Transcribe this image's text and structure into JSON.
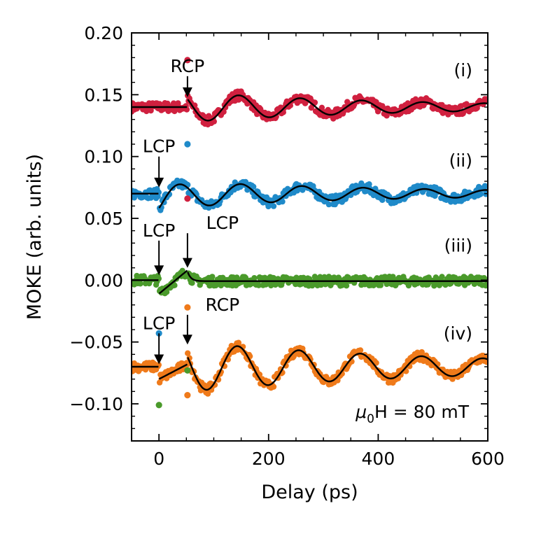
{
  "chart_data": {
    "type": "scatter",
    "xlabel": "Delay (ps)",
    "ylabel": "MOKE (arb. units)",
    "xlim": [
      -50,
      600
    ],
    "ylim": [
      -0.13,
      0.2
    ],
    "xticks": [
      0,
      200,
      400,
      600
    ],
    "yticks": [
      -0.1,
      -0.05,
      0.0,
      0.05,
      0.1,
      0.15,
      0.2
    ],
    "ytick_labels": [
      "−0.10",
      "−0.05",
      "0.00",
      "0.05",
      "0.10",
      "0.15",
      "0.20"
    ],
    "xtick_labels": [
      "0",
      "200",
      "400",
      "600"
    ],
    "grid": false,
    "field_label": {
      "mu": "μ",
      "sub": "0",
      "rest": "H = 80 mT"
    },
    "series": [
      {
        "label": "(i)",
        "color": "#d0203f",
        "baseline": 0.14,
        "pulses": [
          {
            "x": 52,
            "label": "RCP",
            "kick": 0.01,
            "arrow_from": 0.165,
            "arrow_to": 0.148
          }
        ],
        "oscillation": {
          "start": 52,
          "amp": 0.012,
          "period": 112,
          "decay": 400,
          "phase": 1.0
        },
        "outliers": [
          {
            "x": 52,
            "y": 0.178
          }
        ]
      },
      {
        "label": "(ii)",
        "color": "#1f8ac9",
        "baseline": 0.07,
        "pulses": [
          {
            "x": 0,
            "label": "LCP",
            "kick": -0.011,
            "arrow_from": 0.1,
            "arrow_to": 0.075
          }
        ],
        "oscillation": {
          "start": 0,
          "amp": 0.011,
          "period": 112,
          "decay": 450,
          "phase": 4.2
        },
        "outliers": [
          {
            "x": 52,
            "y": 0.11
          },
          {
            "x": 52,
            "y": 0.066
          }
        ]
      },
      {
        "label": "(iii)",
        "color": "#4a9a2b",
        "baseline": 0.0,
        "pulses": [
          {
            "x": 0,
            "label": "LCP",
            "kick": -0.011,
            "arrow_from": 0.032,
            "arrow_to": 0.004
          },
          {
            "x": 52,
            "label": "LCP",
            "kick": 0.008,
            "arrow_from": 0.038,
            "arrow_to": 0.01
          }
        ],
        "oscillation": null,
        "outliers": []
      },
      {
        "label": "(iv)",
        "color": "#ef7a1a",
        "baseline": -0.07,
        "pulses": [
          {
            "x": 0,
            "label": "LCP",
            "kick": -0.01,
            "arrow_from": -0.043,
            "arrow_to": -0.068
          },
          {
            "x": 52,
            "label": "RCP",
            "kick": 0.018,
            "arrow_from": -0.028,
            "arrow_to": -0.052
          }
        ],
        "oscillation": {
          "start": 52,
          "amp": 0.02,
          "period": 112,
          "decay": 500,
          "phase": 1.15
        },
        "outliers": [
          {
            "x": 0,
            "y": -0.043
          },
          {
            "x": 0,
            "y": -0.101
          },
          {
            "x": 52,
            "y": -0.022
          },
          {
            "x": 52,
            "y": -0.073
          },
          {
            "x": 52,
            "y": -0.093
          }
        ]
      }
    ],
    "outlier_colors": {
      "0_-0.043": "#1f8ac9",
      "0_-0.101": "#4a9a2b",
      "52_-0.073": "#4a9a2b",
      "52_0.110": "#d0203f",
      "52_0.066": "#d0203f"
    }
  }
}
